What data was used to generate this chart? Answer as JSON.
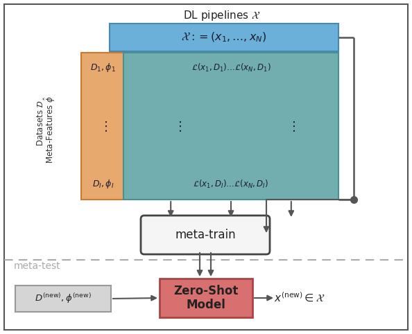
{
  "title": "DL pipelines $\\mathcal{X}$",
  "bg_color": "#ffffff",
  "border_color": "#555555",
  "blue_box_color": "#6ab0d8",
  "teal_box_color": "#72adb0",
  "orange_box_color": "#e8a96e",
  "metatrain_box_color": "#f5f5f5",
  "zeroshot_box_color": "#d97070",
  "gray_box_color": "#d5d5d5",
  "dashed_line_color": "#aaaaaa",
  "arrow_color": "#555555",
  "meta_test_label_color": "#aaaaaa",
  "x_header": "$\\mathcal{X} := (x_1, \\ldots, x_N)$",
  "d1_label": "$D_1, \\phi_1$",
  "dI_label": "$D_I, \\phi_I$",
  "row1_label": "$\\mathcal{L}(x_1, D_1)\\ldots\\mathcal{L}(x_N, D_1)$",
  "rowI_label": "$\\mathcal{L}(x_1, D_I)\\ldots\\mathcal{L}(x_N, D_I)$",
  "metatrain_label": "meta-train",
  "metaset_label": "meta-test",
  "zeroshot_label": "Zero-Shot\nModel",
  "datasets_label_1": "Datasets $\\mathcal{D}$",
  "datasets_label_2": "Meta-Features $\\hat{\\phi}$",
  "new_input_label": "$D^{(\\mathrm{new})}, \\phi^{(\\mathrm{new})}$",
  "output_label": "$x^{(\\mathrm{new})} \\in \\mathcal{X}$",
  "fig_w": 5.94,
  "fig_h": 4.82,
  "dpi": 100
}
